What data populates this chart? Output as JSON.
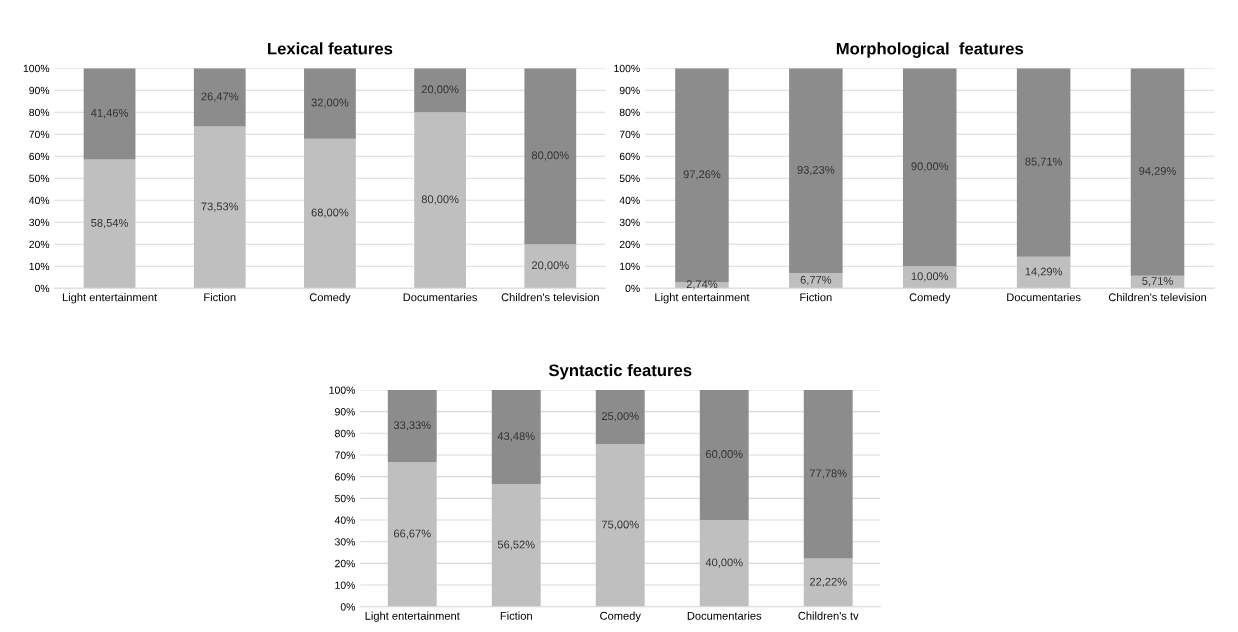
{
  "chart_data": [
    {
      "type": "bar",
      "title": "Lexical features",
      "stacked": true,
      "categories": [
        "Light entertainment",
        "Fiction",
        "Comedy",
        "Documentaries",
        "Children's television"
      ],
      "series": [
        {
          "color": "#bfbfbf",
          "values": [
            58.54,
            73.53,
            68.0,
            80.0,
            20.0
          ],
          "value_labels": [
            "58,54%",
            "73,53%",
            "68,00%",
            "80,00%",
            "20,00%"
          ]
        },
        {
          "color": "#8c8c8c",
          "values": [
            41.46,
            26.47,
            32.0,
            20.0,
            80.0
          ],
          "value_labels": [
            "41,46%",
            "26,47%",
            "32,00%",
            "20,00%",
            "80,00%"
          ]
        }
      ],
      "ylim": [
        0,
        100
      ],
      "yticks": [
        {
          "value": 0,
          "label": "0%"
        },
        {
          "value": 10,
          "label": "10%"
        },
        {
          "value": 20,
          "label": "20%"
        },
        {
          "value": 30,
          "label": "30%"
        },
        {
          "value": 40,
          "label": "40%"
        },
        {
          "value": 50,
          "label": "50%"
        },
        {
          "value": 60,
          "label": "60%"
        },
        {
          "value": 70,
          "label": "70%"
        },
        {
          "value": 80,
          "label": "80%"
        },
        {
          "value": 90,
          "label": "90%"
        },
        {
          "value": 100,
          "label": "100%"
        }
      ],
      "grid": "y"
    },
    {
      "type": "bar",
      "title": "Morphological  features",
      "stacked": true,
      "categories": [
        "Light entertainment",
        "Fiction",
        "Comedy",
        "Documentaries",
        "Children's television"
      ],
      "series": [
        {
          "color": "#bfbfbf",
          "values": [
            2.74,
            6.77,
            10.0,
            14.29,
            5.71
          ],
          "value_labels": [
            "2,74%",
            "6,77%",
            "10,00%",
            "14,29%",
            "5,71%"
          ]
        },
        {
          "color": "#8c8c8c",
          "values": [
            97.26,
            93.23,
            90.0,
            85.71,
            94.29
          ],
          "value_labels": [
            "97,26%",
            "93,23%",
            "90,00%",
            "85,71%",
            "94,29%"
          ]
        }
      ],
      "ylim": [
        0,
        100
      ],
      "yticks": [
        {
          "value": 0,
          "label": "0%"
        },
        {
          "value": 10,
          "label": "10%"
        },
        {
          "value": 20,
          "label": "20%"
        },
        {
          "value": 30,
          "label": "30%"
        },
        {
          "value": 40,
          "label": "40%"
        },
        {
          "value": 50,
          "label": "50%"
        },
        {
          "value": 60,
          "label": "60%"
        },
        {
          "value": 70,
          "label": "70%"
        },
        {
          "value": 80,
          "label": "80%"
        },
        {
          "value": 90,
          "label": "90%"
        },
        {
          "value": 100,
          "label": "100%"
        }
      ],
      "grid": "y"
    },
    {
      "type": "bar",
      "title": "Syntactic features",
      "stacked": true,
      "categories": [
        "Light entertainment",
        "Fiction",
        "Comedy",
        "Documentaries",
        "Children's tv"
      ],
      "series": [
        {
          "color": "#bfbfbf",
          "values": [
            66.67,
            56.52,
            75.0,
            40.0,
            22.22
          ],
          "value_labels": [
            "66,67%",
            "56,52%",
            "75,00%",
            "40,00%",
            "22,22%"
          ]
        },
        {
          "color": "#8c8c8c",
          "values": [
            33.33,
            43.48,
            25.0,
            60.0,
            77.78
          ],
          "value_labels": [
            "33,33%",
            "43,48%",
            "25,00%",
            "60,00%",
            "77,78%"
          ]
        }
      ],
      "ylim": [
        0,
        100
      ],
      "yticks": [
        {
          "value": 0,
          "label": "0%"
        },
        {
          "value": 10,
          "label": "10%"
        },
        {
          "value": 20,
          "label": "20%"
        },
        {
          "value": 30,
          "label": "30%"
        },
        {
          "value": 40,
          "label": "40%"
        },
        {
          "value": 50,
          "label": "50%"
        },
        {
          "value": 60,
          "label": "60%"
        },
        {
          "value": 70,
          "label": "70%"
        },
        {
          "value": 80,
          "label": "80%"
        },
        {
          "value": 90,
          "label": "90%"
        },
        {
          "value": 100,
          "label": "100%"
        }
      ],
      "grid": "y"
    }
  ]
}
